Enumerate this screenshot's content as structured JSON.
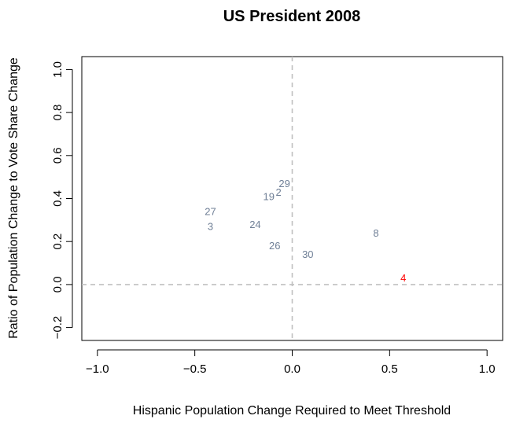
{
  "chart_data": {
    "type": "scatter",
    "title": "US President 2008",
    "xlabel": "Hispanic Population Change Required to Meet Threshold",
    "ylabel": "Ratio of Population Change to Vote Share Change",
    "xlim": [
      -1.08,
      1.08
    ],
    "ylim": [
      -0.26,
      1.06
    ],
    "xticks": [
      -1.0,
      -0.5,
      0.0,
      0.5,
      1.0
    ],
    "xtick_labels": [
      "−1.0",
      "−0.5",
      "0.0",
      "0.5",
      "1.0"
    ],
    "yticks": [
      -0.2,
      0.0,
      0.2,
      0.4,
      0.6,
      0.8,
      1.0
    ],
    "ytick_labels": [
      "−0.2",
      "0.0",
      "0.2",
      "0.4",
      "0.6",
      "0.8",
      "1.0"
    ],
    "reference_lines": {
      "x": 0,
      "y": 0,
      "style": "dashed",
      "color": "#c0c0c0"
    },
    "grid": false,
    "colors": {
      "default": "#6f7f96",
      "highlight": "#ff0000"
    },
    "points": [
      {
        "label": "29",
        "x": -0.04,
        "y": 0.47,
        "highlight": false
      },
      {
        "label": "2",
        "x": -0.07,
        "y": 0.43,
        "highlight": false
      },
      {
        "label": "19",
        "x": -0.12,
        "y": 0.41,
        "highlight": false
      },
      {
        "label": "27",
        "x": -0.42,
        "y": 0.34,
        "highlight": false
      },
      {
        "label": "3",
        "x": -0.42,
        "y": 0.27,
        "highlight": false
      },
      {
        "label": "24",
        "x": -0.19,
        "y": 0.28,
        "highlight": false
      },
      {
        "label": "26",
        "x": -0.09,
        "y": 0.18,
        "highlight": false
      },
      {
        "label": "30",
        "x": 0.08,
        "y": 0.14,
        "highlight": false
      },
      {
        "label": "8",
        "x": 0.43,
        "y": 0.24,
        "highlight": false
      },
      {
        "label": "4",
        "x": 0.57,
        "y": 0.03,
        "highlight": true
      }
    ]
  }
}
